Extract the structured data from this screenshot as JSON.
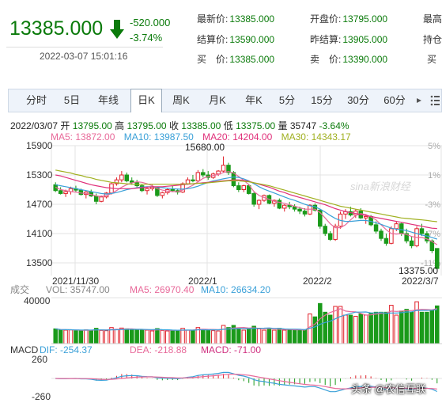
{
  "header": {
    "price": "13385.000",
    "change": "-520.000",
    "change_pct": "-3.74%",
    "datetime": "2022-03-07 15:01:16",
    "quotes": [
      {
        "label": "最新价:",
        "value": "13385.000",
        "color": "green"
      },
      {
        "label": "开盘价:",
        "value": "13795.000",
        "color": "green"
      },
      {
        "label": "最高",
        "value": "",
        "color": "green"
      },
      {
        "label": "结算价:",
        "value": "13590.000",
        "color": "green"
      },
      {
        "label": "昨结算:",
        "value": "13905.000",
        "color": "green"
      },
      {
        "label": "持仓",
        "value": "",
        "color": "green"
      },
      {
        "label": "买　价:",
        "value": "13385.000",
        "color": "green"
      },
      {
        "label": "卖　价:",
        "value": "13390.000",
        "color": "green"
      },
      {
        "label": "买",
        "value": "",
        "color": "green"
      }
    ]
  },
  "tabs": [
    {
      "label": "分时",
      "active": false
    },
    {
      "label": "5日",
      "active": false
    },
    {
      "label": "年线",
      "active": false
    },
    {
      "label": "日K",
      "active": true
    },
    {
      "label": "周K",
      "active": false
    },
    {
      "label": "月K",
      "active": false
    },
    {
      "label": "年K",
      "active": false
    },
    {
      "label": "5分",
      "active": false
    },
    {
      "label": "15分",
      "active": false
    },
    {
      "label": "30分",
      "active": false
    },
    {
      "label": "60分",
      "active": false
    }
  ],
  "info_line": {
    "date": "2022/03/07",
    "open_label": "开",
    "open": "13795.00",
    "high_label": "高",
    "high": "13795.00",
    "close_label": "收",
    "close": "13385.00",
    "low_label": "低",
    "low": "13375.00",
    "vol_label": "量",
    "vol": "35747",
    "pct": "-3.64%"
  },
  "ma_line": [
    {
      "text": "MA5:  13872.00",
      "color": "#e86a9a"
    },
    {
      "text": "MA10: 13987.50",
      "color": "#3aa0d8"
    },
    {
      "text": "MA20: 14204.00",
      "color": "#e0307a"
    },
    {
      "text": "MA30: 14343.17",
      "color": "#a0b020"
    }
  ],
  "watermark": "sina新浪财经",
  "overlay_text": "头条 @农信互联",
  "chart_data": {
    "type": "candlestick",
    "y_ticks": [
      "15900",
      "15300",
      "14700",
      "14100",
      "13500"
    ],
    "y_ticks_right": [
      "5%",
      "1%",
      "-3%",
      "-7%",
      "-11%"
    ],
    "x_ticks": [
      "2021/11/30",
      "2022/1",
      "2022/2",
      "2022/3/7"
    ],
    "ylim": [
      13300,
      15950
    ],
    "annotations": {
      "high": "15680.00",
      "low": "13375.00"
    },
    "candles": [
      [
        15100,
        15150,
        14950,
        14980
      ],
      [
        14980,
        15050,
        14900,
        14920
      ],
      [
        14920,
        15000,
        14850,
        14960
      ],
      [
        14960,
        15060,
        14900,
        15020
      ],
      [
        15020,
        15080,
        14950,
        14990
      ],
      [
        14990,
        15020,
        14880,
        14900
      ],
      [
        14900,
        14980,
        14820,
        14950
      ],
      [
        14950,
        15000,
        14850,
        14870
      ],
      [
        14870,
        14920,
        14700,
        14760
      ],
      [
        14760,
        14880,
        14740,
        14850
      ],
      [
        14850,
        14950,
        14820,
        14930
      ],
      [
        14930,
        15150,
        14900,
        15120
      ],
      [
        15120,
        15250,
        15080,
        15200
      ],
      [
        15200,
        15380,
        15150,
        15300
      ],
      [
        15300,
        15350,
        15150,
        15180
      ],
      [
        15180,
        15250,
        15100,
        15150
      ],
      [
        15150,
        15200,
        15050,
        15080
      ],
      [
        15080,
        15120,
        14950,
        14980
      ],
      [
        14980,
        15050,
        14900,
        15020
      ],
      [
        15020,
        15100,
        14980,
        15050
      ],
      [
        15050,
        15060,
        14850,
        14880
      ],
      [
        14880,
        14960,
        14820,
        14940
      ],
      [
        14940,
        15020,
        14900,
        15000
      ],
      [
        15000,
        15080,
        14950,
        14980
      ],
      [
        14980,
        15020,
        14900,
        14950
      ],
      [
        14950,
        15150,
        14930,
        15120
      ],
      [
        15120,
        15250,
        15100,
        15200
      ],
      [
        15200,
        15300,
        15150,
        15180
      ],
      [
        15180,
        15400,
        15150,
        15350
      ],
      [
        15350,
        15420,
        15250,
        15300
      ],
      [
        15300,
        15380,
        15200,
        15250
      ],
      [
        15250,
        15350,
        15220,
        15320
      ],
      [
        15320,
        15400,
        15280,
        15380
      ],
      [
        15380,
        15680,
        15350,
        15500
      ],
      [
        15500,
        15550,
        15300,
        15350
      ],
      [
        15350,
        15380,
        15050,
        15080
      ],
      [
        15080,
        15150,
        14950,
        15000
      ],
      [
        15000,
        15100,
        14950,
        15080
      ],
      [
        15080,
        15120,
        14900,
        14920
      ],
      [
        14920,
        14950,
        14650,
        14700
      ],
      [
        14700,
        14800,
        14600,
        14780
      ],
      [
        14780,
        14900,
        14750,
        14880
      ],
      [
        14880,
        14900,
        14700,
        14720
      ],
      [
        14720,
        14800,
        14650,
        14780
      ],
      [
        14780,
        14820,
        14600,
        14620
      ],
      [
        14620,
        14700,
        14550,
        14680
      ],
      [
        14680,
        14750,
        14600,
        14650
      ],
      [
        14650,
        14700,
        14550,
        14600
      ],
      [
        14600,
        14650,
        14500,
        14560
      ],
      [
        14560,
        14620,
        14450,
        14500
      ],
      [
        14500,
        14700,
        14480,
        14680
      ],
      [
        14680,
        14720,
        14550,
        14580
      ],
      [
        14580,
        14600,
        14200,
        14250
      ],
      [
        14250,
        14300,
        14050,
        14100
      ],
      [
        14100,
        14150,
        13950,
        13980
      ],
      [
        13980,
        14300,
        13950,
        14250
      ],
      [
        14250,
        14550,
        14200,
        14500
      ],
      [
        14500,
        14600,
        14400,
        14550
      ],
      [
        14550,
        14650,
        14450,
        14480
      ],
      [
        14480,
        14600,
        14420,
        14560
      ],
      [
        14560,
        14620,
        14400,
        14420
      ],
      [
        14420,
        14500,
        14300,
        14450
      ],
      [
        14450,
        14480,
        14250,
        14280
      ],
      [
        14280,
        14350,
        14100,
        14150
      ],
      [
        14150,
        14200,
        13950,
        14000
      ],
      [
        14000,
        14100,
        13850,
        13900
      ],
      [
        13900,
        14250,
        13880,
        14200
      ],
      [
        14200,
        14350,
        14150,
        14300
      ],
      [
        14300,
        14320,
        14050,
        14100
      ],
      [
        14100,
        14200,
        13900,
        13950
      ],
      [
        13950,
        14050,
        13800,
        13850
      ],
      [
        13850,
        14250,
        13820,
        14200
      ],
      [
        14200,
        14300,
        14050,
        14100
      ],
      [
        14100,
        14150,
        13900,
        13950
      ],
      [
        13950,
        13980,
        13700,
        13750
      ],
      [
        13795,
        13795,
        13375,
        13385
      ]
    ],
    "ma": {
      "MA5": [
        15050,
        15000,
        14980,
        14960,
        14950,
        14930,
        14920,
        14900,
        14870,
        14860,
        14880,
        14920,
        14980,
        15050,
        15100,
        15140,
        15160,
        15150,
        15120,
        15080,
        15020,
        14990,
        14970,
        14960,
        14960,
        14990,
        15040,
        15090,
        15160,
        15230,
        15270,
        15290,
        15310,
        15350,
        15370,
        15340,
        15270,
        15190,
        15100,
        14960,
        14880,
        14840,
        14800,
        14760,
        14740,
        14720,
        14690,
        14660,
        14630,
        14600,
        14600,
        14600,
        14530,
        14420,
        14300,
        14220,
        14220,
        14280,
        14380,
        14470,
        14510,
        14490,
        14440,
        14380,
        14280,
        14180,
        14100,
        14090,
        14100,
        14080,
        14040,
        14020,
        14020,
        13990,
        13940,
        13872
      ],
      "MA10": [
        15100,
        15080,
        15060,
        15040,
        15020,
        15000,
        14980,
        14960,
        14940,
        14920,
        14910,
        14920,
        14940,
        14970,
        15000,
        15020,
        15040,
        15050,
        15060,
        15060,
        15050,
        15040,
        15030,
        15020,
        15010,
        15010,
        15020,
        15040,
        15070,
        15110,
        15150,
        15180,
        15200,
        15220,
        15240,
        15260,
        15250,
        15220,
        15180,
        15120,
        15060,
        15010,
        14970,
        14930,
        14890,
        14850,
        14810,
        14780,
        14740,
        14700,
        14670,
        14650,
        14600,
        14540,
        14470,
        14410,
        14370,
        14350,
        14350,
        14360,
        14370,
        14370,
        14350,
        14320,
        14290,
        14250,
        14210,
        14190,
        14180,
        14160,
        14130,
        14100,
        14070,
        14050,
        14020,
        13987
      ],
      "MA20": [
        15300,
        15280,
        15250,
        15220,
        15190,
        15160,
        15130,
        15100,
        15080,
        15060,
        15040,
        15030,
        15020,
        15020,
        15020,
        15020,
        15030,
        15040,
        15050,
        15060,
        15060,
        15060,
        15070,
        15080,
        15090,
        15100,
        15110,
        15120,
        15130,
        15140,
        15150,
        15160,
        15170,
        15180,
        15190,
        15200,
        15200,
        15190,
        15170,
        15140,
        15110,
        15080,
        15050,
        15010,
        14970,
        14940,
        14900,
        14870,
        14840,
        14810,
        14780,
        14750,
        14720,
        14690,
        14650,
        14610,
        14580,
        14550,
        14530,
        14510,
        14490,
        14470,
        14450,
        14430,
        14410,
        14390,
        14370,
        14350,
        14330,
        14310,
        14290,
        14270,
        14250,
        14230,
        14210,
        14204
      ],
      "MA30": [
        15400,
        15380,
        15360,
        15340,
        15310,
        15290,
        15260,
        15240,
        15210,
        15190,
        15170,
        15150,
        15140,
        15130,
        15120,
        15110,
        15110,
        15110,
        15110,
        15110,
        15110,
        15110,
        15110,
        15110,
        15110,
        15110,
        15120,
        15120,
        15130,
        15130,
        15140,
        15150,
        15160,
        15170,
        15180,
        15180,
        15180,
        15170,
        15160,
        15140,
        15120,
        15100,
        15080,
        15050,
        15020,
        14990,
        14960,
        14930,
        14900,
        14870,
        14840,
        14810,
        14780,
        14750,
        14720,
        14690,
        14660,
        14640,
        14620,
        14600,
        14580,
        14560,
        14540,
        14520,
        14500,
        14480,
        14460,
        14440,
        14420,
        14410,
        14400,
        14390,
        14380,
        14370,
        14355,
        14343
      ]
    },
    "volume": {
      "label_prefix": "成交",
      "labels": [
        "VOL: 35747.00",
        "MA5: 26970.40",
        "MA10: 26634.20"
      ],
      "y_tick": "40000",
      "ymax": 42000
    },
    "macd": {
      "labels": [
        "MACD",
        "DIF: -254.37",
        "DEA: -218.88",
        "MACD: -71.00"
      ],
      "y_ticks": [
        "260",
        "-260"
      ],
      "ylim": [
        -320,
        320
      ]
    }
  }
}
